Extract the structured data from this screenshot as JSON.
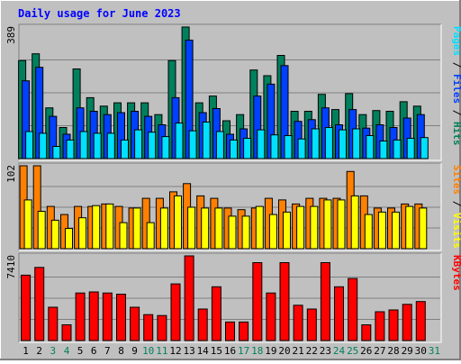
{
  "title": "Daily usage for June 2023",
  "colors": {
    "background": "#c0c0c0",
    "hits": "#00805c",
    "files": "#0040ff",
    "pages": "#00e0ff",
    "visits": "#ff8000",
    "sites": "#ffff00",
    "kbytes": "#ff0000",
    "weekend_day": "#00805c",
    "weekday": "#000000",
    "title": "#0000ff"
  },
  "chart_data": [
    {
      "type": "bar",
      "panel": "hits-files-pages",
      "series_labels": [
        "Pages",
        "Files",
        "Hits"
      ],
      "max_label": "389",
      "ylim": [
        0,
        389
      ],
      "categories": [
        "1",
        "2",
        "3",
        "4",
        "5",
        "6",
        "7",
        "8",
        "9",
        "10",
        "11",
        "12",
        "13",
        "14",
        "15",
        "16",
        "17",
        "18",
        "19",
        "20",
        "21",
        "22",
        "23",
        "24",
        "25",
        "26",
        "27",
        "28",
        "29",
        "30",
        "31"
      ],
      "series": [
        {
          "name": "Hits",
          "values": [
            290,
            310,
            150,
            92,
            265,
            180,
            155,
            165,
            165,
            165,
            130,
            290,
            389,
            165,
            185,
            112,
            130,
            262,
            245,
            305,
            140,
            140,
            190,
            145,
            192,
            130,
            142,
            140,
            168,
            155,
            0
          ]
        },
        {
          "name": "Files",
          "values": [
            230,
            270,
            125,
            72,
            150,
            140,
            130,
            136,
            140,
            125,
            100,
            180,
            350,
            136,
            148,
            72,
            88,
            185,
            220,
            275,
            110,
            115,
            150,
            100,
            145,
            90,
            100,
            92,
            120,
            130,
            0
          ]
        },
        {
          "name": "Pages",
          "values": [
            80,
            75,
            36,
            55,
            80,
            75,
            75,
            55,
            85,
            78,
            65,
            105,
            82,
            108,
            80,
            55,
            60,
            85,
            70,
            68,
            58,
            88,
            92,
            85,
            88,
            68,
            52,
            55,
            60,
            62,
            0
          ]
        }
      ]
    },
    {
      "type": "bar",
      "panel": "sites-visits",
      "series_labels": [
        "Sites",
        "Visits"
      ],
      "max_label": "102",
      "ylim": [
        0,
        102
      ],
      "categories": [
        "1",
        "2",
        "3",
        "4",
        "5",
        "6",
        "7",
        "8",
        "9",
        "10",
        "11",
        "12",
        "13",
        "14",
        "15",
        "16",
        "17",
        "18",
        "19",
        "20",
        "21",
        "22",
        "23",
        "24",
        "25",
        "26",
        "27",
        "28",
        "29",
        "30",
        "31"
      ],
      "series": [
        {
          "name": "Visits",
          "values": [
            102,
            102,
            52,
            42,
            52,
            52,
            55,
            52,
            50,
            62,
            62,
            70,
            80,
            65,
            62,
            50,
            48,
            50,
            62,
            60,
            55,
            62,
            62,
            62,
            95,
            65,
            50,
            50,
            55,
            55,
            0
          ]
        },
        {
          "name": "Sites",
          "values": [
            60,
            46,
            35,
            25,
            38,
            53,
            55,
            32,
            50,
            32,
            50,
            65,
            51,
            50,
            50,
            40,
            40,
            52,
            42,
            45,
            52,
            52,
            60,
            60,
            65,
            42,
            45,
            45,
            52,
            50,
            0
          ]
        }
      ]
    },
    {
      "type": "bar",
      "panel": "kbytes",
      "series_labels": [
        "KBytes"
      ],
      "max_label": "7410",
      "ylim": [
        0,
        7410
      ],
      "categories": [
        "1",
        "2",
        "3",
        "4",
        "5",
        "6",
        "7",
        "8",
        "9",
        "10",
        "11",
        "12",
        "13",
        "14",
        "15",
        "16",
        "17",
        "18",
        "19",
        "20",
        "21",
        "22",
        "23",
        "24",
        "25",
        "26",
        "27",
        "28",
        "29",
        "30",
        "31"
      ],
      "series": [
        {
          "name": "KBytes",
          "values": [
            5720,
            6400,
            2920,
            1380,
            4160,
            4260,
            4160,
            4060,
            2920,
            2270,
            2190,
            4960,
            7410,
            2760,
            4710,
            1620,
            1620,
            6820,
            4160,
            6820,
            3090,
            2760,
            6820,
            4710,
            5430,
            1380,
            2520,
            2680,
            3170,
            3410,
            0
          ]
        }
      ]
    }
  ]
}
